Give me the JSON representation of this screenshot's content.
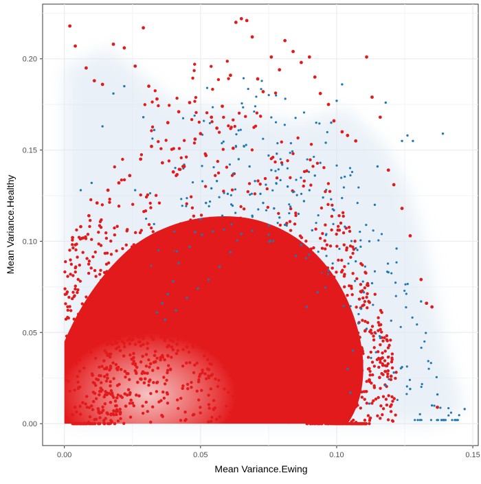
{
  "chart_data": {
    "type": "scatter",
    "title": "",
    "xlabel": "Mean Variance.Ewing",
    "ylabel": "Mean Variance.Healthy",
    "xlim": [
      -0.008,
      0.152
    ],
    "ylim": [
      -0.012,
      0.23
    ],
    "x_ticks": [
      0.0,
      0.05,
      0.1,
      0.15
    ],
    "x_tick_labels": [
      "0.00",
      "0.05",
      "0.10",
      "0.15"
    ],
    "y_ticks": [
      0.0,
      0.05,
      0.1,
      0.15,
      0.2
    ],
    "y_tick_labels": [
      "0.00",
      "0.05",
      "0.10",
      "0.15",
      "0.20"
    ],
    "grid": true,
    "legend": "none",
    "background": "#ffffff",
    "grid_color": "#ebebeb",
    "colors": {
      "blue_series": "#1f78b4",
      "red_series": "#e31a1c",
      "density_halo": "#dbe7f2",
      "dense_core": "#f4a8a8"
    },
    "series": [
      {
        "color": "#1f78b4",
        "description_points": "sparse blue points on outer band",
        "x": [
          0.139,
          0.147,
          0.137,
          0.135,
          0.128,
          0.126,
          0.124,
          0.118,
          0.115,
          0.114,
          0.112,
          0.11,
          0.108,
          0.106,
          0.104,
          0.102,
          0.1,
          0.098,
          0.096,
          0.094,
          0.092,
          0.09,
          0.088,
          0.086,
          0.084,
          0.082,
          0.08,
          0.078,
          0.076,
          0.074,
          0.072,
          0.07,
          0.068,
          0.066,
          0.064,
          0.062,
          0.06,
          0.058,
          0.056,
          0.054,
          0.052,
          0.05,
          0.048,
          0.046,
          0.044,
          0.042,
          0.04,
          0.038,
          0.036,
          0.034,
          0.105,
          0.112,
          0.118,
          0.121,
          0.124,
          0.116,
          0.111,
          0.109,
          0.113,
          0.119,
          0.122,
          0.127,
          0.131,
          0.107,
          0.103,
          0.099,
          0.095,
          0.091,
          0.087,
          0.083,
          0.079,
          0.075,
          0.097,
          0.093,
          0.089,
          0.085,
          0.081,
          0.077,
          0.073,
          0.069,
          0.065,
          0.061,
          0.057,
          0.053,
          0.049,
          0.045,
          0.041,
          0.037,
          0.033,
          0.029,
          0.026,
          0.022,
          0.018,
          0.014,
          0.01,
          0.006
        ],
        "y": [
          0.159,
          0.008,
          0.016,
          0.01,
          0.155,
          0.158,
          0.155,
          0.176,
          0.141,
          0.12,
          0.1,
          0.072,
          0.055,
          0.04,
          0.03,
          0.186,
          0.177,
          0.165,
          0.154,
          0.143,
          0.136,
          0.128,
          0.122,
          0.115,
          0.127,
          0.13,
          0.142,
          0.148,
          0.139,
          0.131,
          0.126,
          0.133,
          0.141,
          0.152,
          0.145,
          0.137,
          0.126,
          0.114,
          0.133,
          0.129,
          0.121,
          0.112,
          0.105,
          0.097,
          0.142,
          0.088,
          0.078,
          0.071,
          0.066,
          0.061,
          0.017,
          0.011,
          0.021,
          0.028,
          0.031,
          0.047,
          0.052,
          0.063,
          0.077,
          0.083,
          0.096,
          0.019,
          0.067,
          0.089,
          0.108,
          0.117,
          0.124,
          0.106,
          0.098,
          0.119,
          0.113,
          0.147,
          0.084,
          0.072,
          0.064,
          0.092,
          0.109,
          0.118,
          0.121,
          0.114,
          0.104,
          0.094,
          0.086,
          0.079,
          0.074,
          0.069,
          0.062,
          0.057,
          0.161,
          0.168,
          0.128,
          0.185,
          0.181,
          0.163,
          0.132,
          0.128
        ]
      },
      {
        "color": "#e31a1c",
        "description_points": "red points, dense core and scattered outliers",
        "x": [
          0.002,
          0.004,
          0.008,
          0.011,
          0.014,
          0.018,
          0.022,
          0.026,
          0.029,
          0.031,
          0.034,
          0.038,
          0.042,
          0.046,
          0.05,
          0.054,
          0.058,
          0.061,
          0.063,
          0.065,
          0.067,
          0.069,
          0.071,
          0.073,
          0.076,
          0.079,
          0.081,
          0.084,
          0.087,
          0.09,
          0.092,
          0.094,
          0.097,
          0.099,
          0.102,
          0.104,
          0.107,
          0.111,
          0.113,
          0.116,
          0.119,
          0.121,
          0.124,
          0.127,
          0.131,
          0.133,
          0.135,
          0.137,
          0.12,
          0.117,
          0.112,
          0.108,
          0.103,
          0.098,
          0.095,
          0.089,
          0.083,
          0.078,
          0.072,
          0.068,
          0.062,
          0.056,
          0.052,
          0.048,
          0.044,
          0.04,
          0.036,
          0.032,
          0.028,
          0.024,
          0.02,
          0.016,
          0.012,
          0.009,
          0.006,
          0.003
        ],
        "y": [
          0.218,
          0.207,
          0.195,
          0.188,
          0.186,
          0.208,
          0.206,
          0.196,
          0.217,
          0.185,
          0.178,
          0.165,
          0.171,
          0.176,
          0.159,
          0.168,
          0.174,
          0.191,
          0.22,
          0.222,
          0.221,
          0.212,
          0.189,
          0.182,
          0.201,
          0.194,
          0.21,
          0.204,
          0.198,
          0.201,
          0.19,
          0.181,
          0.175,
          0.166,
          0.16,
          0.158,
          0.155,
          0.201,
          0.179,
          0.168,
          0.139,
          0.131,
          0.118,
          0.103,
          0.079,
          0.066,
          0.064,
          0.009,
          0.026,
          0.032,
          0.024,
          0.018,
          0.012,
          0.01,
          0.003,
          0.014,
          0.006,
          0.004,
          0.009,
          0.013,
          0.151,
          0.162,
          0.147,
          0.156,
          0.141,
          0.138,
          0.143,
          0.152,
          0.145,
          0.136,
          0.132,
          0.128,
          0.121,
          0.114,
          0.108,
          0.102
        ]
      }
    ]
  }
}
